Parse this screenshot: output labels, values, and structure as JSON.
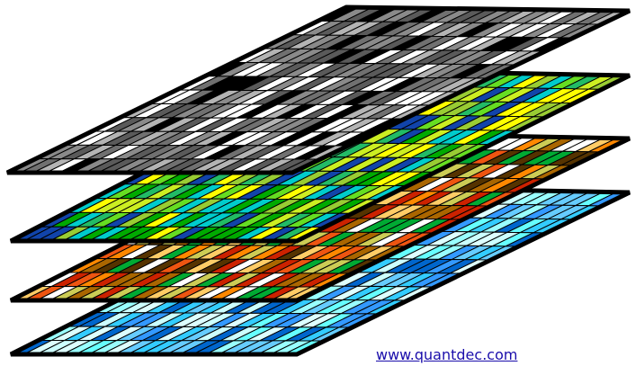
{
  "credit": {
    "link_text": "www.quantdec.com"
  },
  "layers": [
    {
      "name": "grayscale",
      "palette": [
        "#5a5a5a",
        "#8a8a8a",
        "#b4b4b4",
        "#ffffff",
        "#000000",
        "#707070"
      ]
    },
    {
      "name": "green-yellow",
      "palette": [
        "#00aa00",
        "#66dd22",
        "#ccee22",
        "#ffff00",
        "#00cccc",
        "#1144aa",
        "#22bb66",
        "#99cc33"
      ]
    },
    {
      "name": "warm-mixed",
      "palette": [
        "#cc2200",
        "#ff8800",
        "#ffcc66",
        "#aa6600",
        "#00aa33",
        "#ffffff",
        "#553300",
        "#cccc55",
        "#ee5511"
      ]
    },
    {
      "name": "cyan-blue",
      "palette": [
        "#66ffff",
        "#99ffff",
        "#33ccff",
        "#3399ff",
        "#ccffff",
        "#0066cc",
        "#66ccff",
        "#ddffff"
      ]
    }
  ],
  "grid": {
    "rows": 12,
    "cols": 22,
    "line_color": "#000000",
    "border_color": "#000000"
  }
}
